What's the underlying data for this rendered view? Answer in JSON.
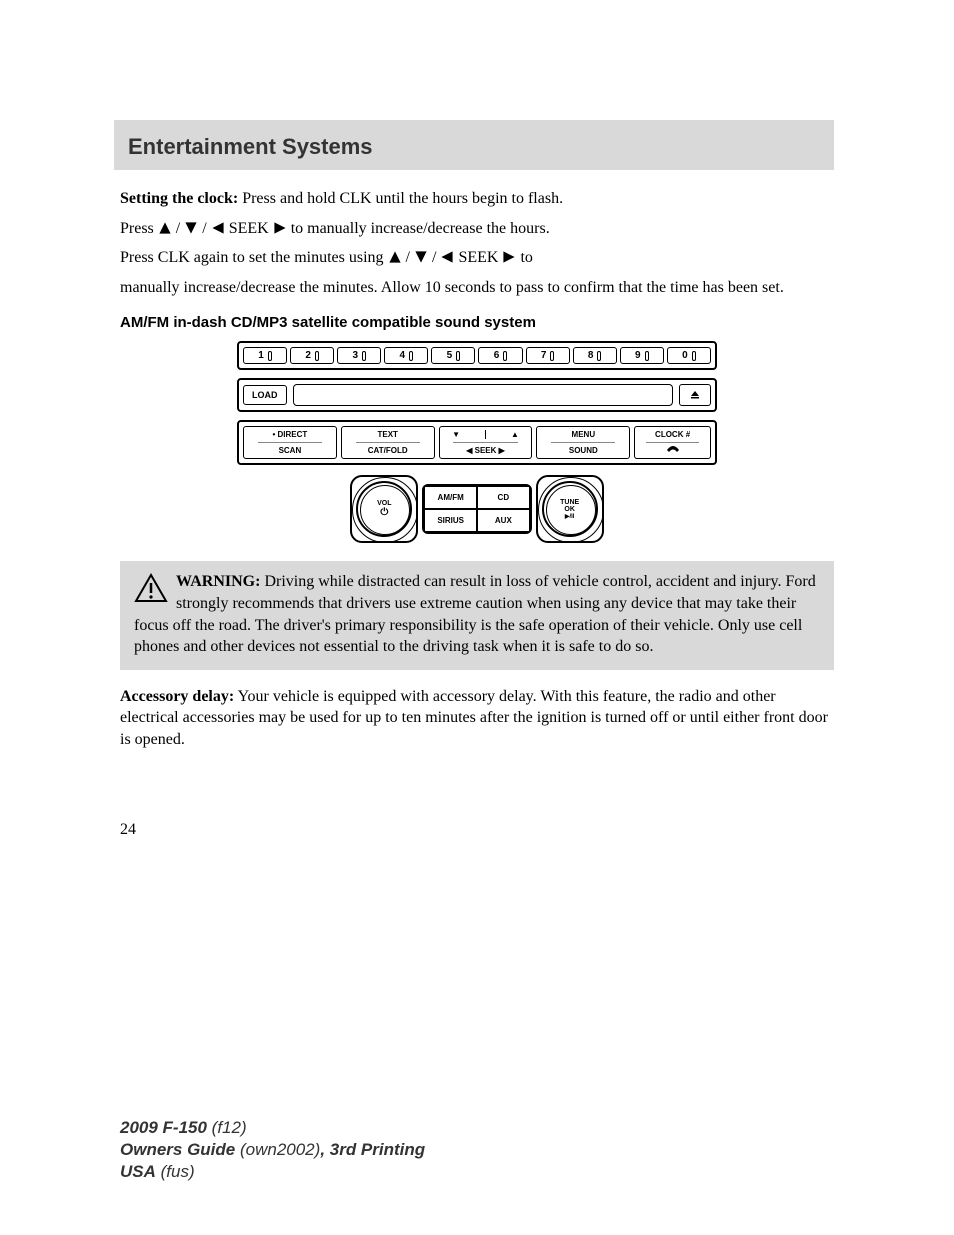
{
  "header": {
    "title": "Entertainment Systems"
  },
  "clock": {
    "label": "Setting the clock:",
    "line1a": " Press and hold CLK until the hours begin to flash.",
    "line2a": "Press ",
    "line2b": " / ",
    "line2c": " / ",
    "seek_label": " SEEK ",
    "line2d": " to manually increase/decrease the hours.",
    "line3a": "Press CLK again to set the minutes using ",
    "line3b": " to",
    "line4": "manually increase/decrease the minutes. Allow 10 seconds to pass to confirm that the time has been set."
  },
  "subhead": "AM/FM in-dash CD/MP3 satellite compatible sound system",
  "radio": {
    "numbers": [
      "1",
      "2",
      "3",
      "4",
      "5",
      "6",
      "7",
      "8",
      "9",
      "0"
    ],
    "load": "LOAD",
    "row_btns": {
      "direct": "• DIRECT",
      "scan": "SCAN",
      "text": "TEXT",
      "catfold": "CAT/FOLD",
      "seek": "SEEK",
      "menu": "MENU",
      "sound": "SOUND",
      "clock": "CLOCK #"
    },
    "knob_left": {
      "l1": "VOL",
      "l2": "⏻"
    },
    "knob_right": {
      "l1": "TUNE",
      "l2": "OK",
      "l3": "▶/II"
    },
    "mid": {
      "amfm": "AM/FM",
      "cd": "CD",
      "sirius": "SIRIUS",
      "aux": "AUX"
    }
  },
  "warning": {
    "label": "WARNING:",
    "text": " Driving while distracted can result in loss of vehicle control, accident and injury. Ford strongly recommends that drivers use extreme caution when using any device that may take their focus off the road. The driver's primary responsibility is the safe operation of their vehicle. Only use cell phones and other devices not essential to the driving task when it is safe to do so."
  },
  "accessory": {
    "label": "Accessory delay:",
    "text": " Your vehicle is equipped with accessory delay. With this feature, the radio and other electrical accessories may be used for up to ten minutes after the ignition is turned off or until either front door is opened."
  },
  "page_number": "24",
  "footer": {
    "model": "2009 F-150",
    "model_code": " (f12)",
    "guide": "Owners Guide",
    "guide_code": " (own2002)",
    "printing": ", 3rd Printing",
    "country": "USA",
    "country_code": " (fus)"
  },
  "colors": {
    "band": "#d9d9d9",
    "text": "#000000",
    "footer": "#333333"
  }
}
